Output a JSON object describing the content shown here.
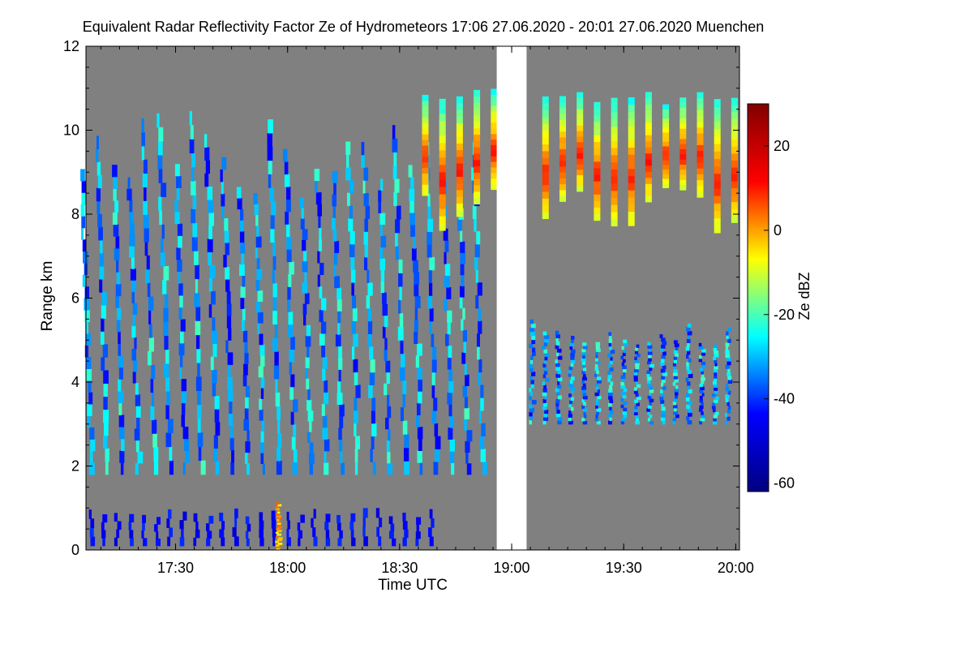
{
  "chart_data": {
    "type": "heatmap",
    "title": "Equivalent Radar Reflectivity Factor Ze of Hydrometeors    17:06 27.06.2020 - 20:01 27.06.2020 Muenchen",
    "xlabel": "Time UTC",
    "ylabel": "Range km",
    "xlim": [
      "17:06",
      "20:01"
    ],
    "ylim": [
      0,
      12
    ],
    "x_ticks": [
      "17:30",
      "18:00",
      "18:30",
      "19:00",
      "19:30",
      "20:00"
    ],
    "y_ticks": [
      "0",
      "2",
      "4",
      "6",
      "8",
      "10",
      "12"
    ],
    "colorbar": {
      "label": "Ze dBZ",
      "range": [
        -62,
        30
      ],
      "ticks": [
        "20",
        "0",
        "-20",
        "-40",
        "-60"
      ],
      "colormap": [
        "#000080",
        "#0000ff",
        "#00ffff",
        "#ffff00",
        "#ff0000",
        "#800000"
      ]
    },
    "background_color": "#808080",
    "missing_data_color": "#ffffff",
    "data_gap": [
      "18:56",
      "19:04"
    ],
    "features": [
      {
        "desc": "precipitation fall streaks 0-10 km",
        "x_range": [
          "17:06",
          "18:56"
        ],
        "ze_range": [
          -45,
          -20
        ]
      },
      {
        "desc": "low-level echoes near 0-1 km",
        "x_range": [
          "17:06",
          "18:40"
        ],
        "ze_range": [
          -50,
          -40
        ]
      },
      {
        "desc": "strong near-ground echo",
        "x": "17:57",
        "y_range": [
          0,
          1.5
        ],
        "ze_range": [
          -10,
          5
        ]
      },
      {
        "desc": "high-level periodic echoes 7.5-11 km",
        "x_range": [
          "18:35",
          "20:01"
        ],
        "ze_range": [
          -25,
          10
        ]
      },
      {
        "desc": "mid-level echoes 3-5.5 km",
        "x_range": [
          "19:04",
          "20:01"
        ],
        "ze_range": [
          -45,
          -20
        ]
      }
    ]
  }
}
